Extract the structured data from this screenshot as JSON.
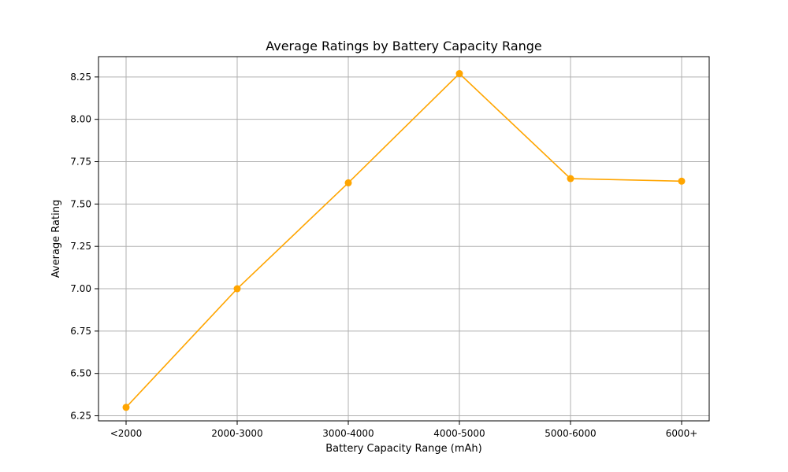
{
  "chart_data": {
    "type": "line",
    "title": "Average Ratings by Battery Capacity Range",
    "xlabel": "Battery Capacity Range (mAh)",
    "ylabel": "Average Rating",
    "categories": [
      "<2000",
      "2000-3000",
      "3000-4000",
      "4000-5000",
      "5000-6000",
      "6000+"
    ],
    "series": [
      {
        "values": [
          6.3,
          7.0,
          7.625,
          8.27,
          7.65,
          7.635
        ],
        "color": "#ffa500",
        "marker": "circle"
      }
    ],
    "ylim": [
      6.22,
      8.37
    ],
    "yticks": [
      6.25,
      6.5,
      6.75,
      7.0,
      7.25,
      7.5,
      7.75,
      8.0,
      8.25
    ],
    "ytick_labels": [
      "6.25",
      "6.50",
      "6.75",
      "7.00",
      "7.25",
      "7.50",
      "7.75",
      "8.00",
      "8.25"
    ],
    "grid": true,
    "legend": false
  }
}
